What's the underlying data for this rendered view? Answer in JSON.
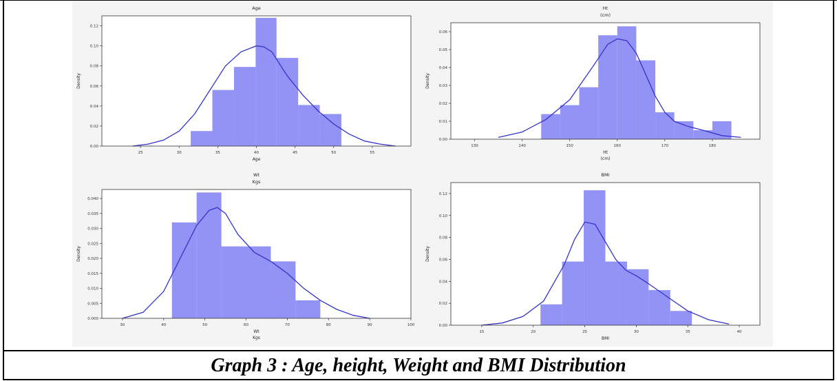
{
  "caption": "Graph 3 : Age, height, Weight and BMI  Distribution",
  "colors": {
    "bar": "#8080f4",
    "kde": "#3333c8",
    "axes": "#333333",
    "background": "#ffffff"
  },
  "chart_data": [
    {
      "type": "bar",
      "title_lines": [
        "Age"
      ],
      "xlabel_lines": [
        "Age"
      ],
      "ylabel": "Density",
      "xlim": [
        20,
        60
      ],
      "ylim": [
        0,
        0.13
      ],
      "xticks": [
        25,
        30,
        35,
        40,
        45,
        50,
        55
      ],
      "xtick_labels": [
        "25",
        "30",
        "35",
        "40",
        "45",
        "50",
        "55"
      ],
      "yticks": [
        0,
        0.02,
        0.04,
        0.06,
        0.08,
        0.1,
        0.12
      ],
      "ytick_labels": [
        "0.00",
        "0.02",
        "0.04",
        "0.06",
        "0.08",
        "0.10",
        "0.12"
      ],
      "bins": [
        [
          31.5,
          34.3,
          0.015
        ],
        [
          34.3,
          37.1,
          0.056
        ],
        [
          37.1,
          39.9,
          0.079
        ],
        [
          39.9,
          42.6,
          0.128
        ],
        [
          42.6,
          45.4,
          0.088
        ],
        [
          45.4,
          48.2,
          0.041
        ],
        [
          48.2,
          51.0,
          0.032
        ]
      ],
      "kde_x": [
        24,
        26,
        28,
        30,
        32,
        34,
        36,
        38,
        40,
        41,
        42,
        43,
        44,
        46,
        48,
        50,
        52,
        54,
        56,
        58
      ],
      "kde_y": [
        0.0,
        0.002,
        0.006,
        0.015,
        0.032,
        0.056,
        0.08,
        0.094,
        0.1,
        0.099,
        0.094,
        0.082,
        0.07,
        0.051,
        0.035,
        0.022,
        0.012,
        0.005,
        0.002,
        0.0
      ]
    },
    {
      "type": "bar",
      "title_lines": [
        "Ht",
        "(cm)"
      ],
      "xlabel_lines": [
        "Ht",
        "(cm)"
      ],
      "ylabel": "Density",
      "xlim": [
        125,
        190
      ],
      "ylim": [
        0,
        0.065
      ],
      "xticks": [
        130,
        140,
        150,
        160,
        170,
        180
      ],
      "xtick_labels": [
        "130",
        "140",
        "150",
        "160",
        "170",
        "180"
      ],
      "yticks": [
        0,
        0.01,
        0.02,
        0.03,
        0.04,
        0.05,
        0.06
      ],
      "ytick_labels": [
        "0.00",
        "0.01",
        "0.02",
        "0.03",
        "0.04",
        "0.05",
        "0.06"
      ],
      "bins": [
        [
          144,
          148,
          0.014
        ],
        [
          148,
          152,
          0.019
        ],
        [
          152,
          156,
          0.029
        ],
        [
          156,
          160,
          0.058
        ],
        [
          160,
          164,
          0.063
        ],
        [
          164,
          168,
          0.044
        ],
        [
          168,
          172,
          0.015
        ],
        [
          172,
          176,
          0.01
        ],
        [
          176,
          180,
          0.005
        ],
        [
          180,
          184,
          0.01
        ]
      ],
      "kde_x": [
        135,
        140,
        145,
        150,
        155,
        158,
        160,
        162,
        164,
        166,
        168,
        170,
        172,
        175,
        178,
        182,
        186
      ],
      "kde_y": [
        0.001,
        0.004,
        0.011,
        0.022,
        0.041,
        0.053,
        0.056,
        0.055,
        0.048,
        0.036,
        0.024,
        0.015,
        0.01,
        0.007,
        0.005,
        0.002,
        0.001
      ]
    },
    {
      "type": "bar",
      "title_lines": [
        "Wt",
        "Kgs"
      ],
      "xlabel_lines": [
        "Wt",
        "Kgs"
      ],
      "ylabel": "Density",
      "xlim": [
        25,
        100
      ],
      "ylim": [
        0,
        0.043
      ],
      "xticks": [
        30,
        40,
        50,
        60,
        70,
        80,
        90,
        100
      ],
      "xtick_labels": [
        "30",
        "40",
        "50",
        "60",
        "70",
        "80",
        "90",
        "100"
      ],
      "yticks": [
        0,
        0.005,
        0.01,
        0.015,
        0.02,
        0.025,
        0.03,
        0.035,
        0.04
      ],
      "ytick_labels": [
        "0.000",
        "0.005",
        "0.010",
        "0.015",
        "0.020",
        "0.025",
        "0.030",
        "0.035",
        "0.040"
      ],
      "bins": [
        [
          42,
          48,
          0.032
        ],
        [
          48,
          54,
          0.042
        ],
        [
          54,
          60,
          0.024
        ],
        [
          60,
          66,
          0.024
        ],
        [
          66,
          72,
          0.019
        ],
        [
          72,
          78,
          0.006
        ]
      ],
      "kde_x": [
        30,
        35,
        40,
        44,
        48,
        51,
        53,
        55,
        58,
        62,
        66,
        70,
        74,
        78,
        82,
        86,
        90
      ],
      "kde_y": [
        0.0,
        0.002,
        0.009,
        0.02,
        0.031,
        0.036,
        0.037,
        0.035,
        0.028,
        0.022,
        0.019,
        0.015,
        0.01,
        0.006,
        0.003,
        0.001,
        0.0
      ]
    },
    {
      "type": "bar",
      "title_lines": [
        "BMI"
      ],
      "xlabel_lines": [
        "BMI"
      ],
      "ylabel": "Density",
      "xlim": [
        12,
        42
      ],
      "ylim": [
        0,
        0.13
      ],
      "xticks": [
        15,
        20,
        25,
        30,
        35,
        40
      ],
      "xtick_labels": [
        "15",
        "20",
        "25",
        "30",
        "35",
        "40"
      ],
      "yticks": [
        0,
        0.02,
        0.04,
        0.06,
        0.08,
        0.1,
        0.12
      ],
      "ytick_labels": [
        "0.00",
        "0.02",
        "0.04",
        "0.06",
        "0.08",
        "0.10",
        "0.12"
      ],
      "bins": [
        [
          20.7,
          22.8,
          0.019
        ],
        [
          22.8,
          24.9,
          0.058
        ],
        [
          24.9,
          27.0,
          0.123
        ],
        [
          27.0,
          29.1,
          0.058
        ],
        [
          29.1,
          31.2,
          0.051
        ],
        [
          31.2,
          33.3,
          0.032
        ],
        [
          33.3,
          35.4,
          0.013
        ]
      ],
      "kde_x": [
        15,
        17,
        19,
        21,
        23,
        24,
        25,
        26,
        27,
        28,
        29,
        30,
        31,
        33,
        35,
        37,
        39
      ],
      "kde_y": [
        0.0,
        0.002,
        0.008,
        0.022,
        0.055,
        0.078,
        0.094,
        0.092,
        0.076,
        0.06,
        0.05,
        0.045,
        0.039,
        0.026,
        0.013,
        0.005,
        0.001
      ]
    }
  ]
}
